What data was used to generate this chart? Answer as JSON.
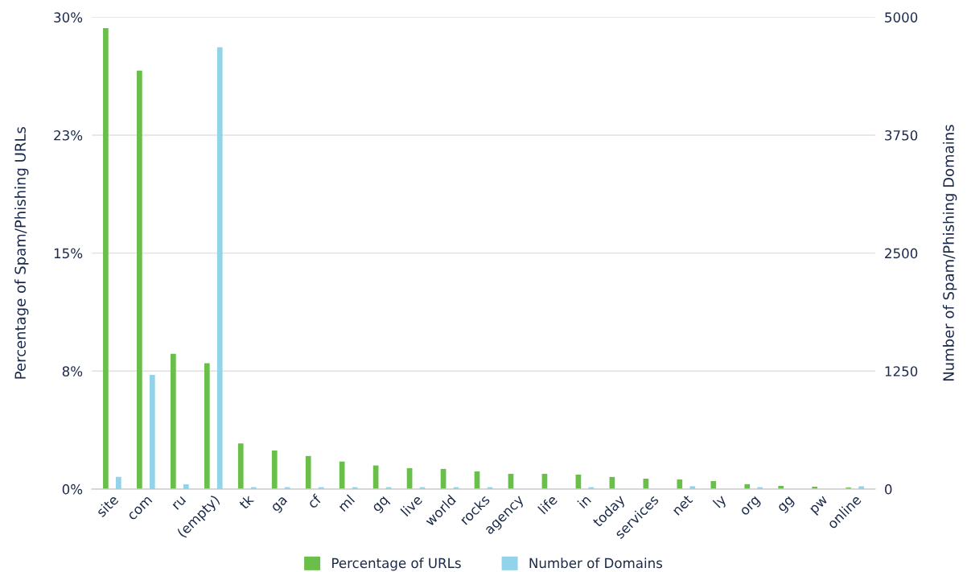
{
  "chart_data": {
    "type": "bar",
    "categories": [
      "site",
      "com",
      "ru",
      "(empty)",
      "tk",
      "ga",
      "cf",
      "ml",
      "gq",
      "live",
      "world",
      "rocks",
      "agency",
      "life",
      "in",
      "today",
      "services",
      "net",
      "ly",
      "org",
      "gg",
      "pw",
      "online"
    ],
    "series": [
      {
        "name": "Percentage of URLs",
        "color": "#6abf4b",
        "values": [
          29.3,
          26.6,
          8.6,
          8.0,
          2.9,
          2.45,
          2.1,
          1.75,
          1.5,
          1.33,
          1.28,
          1.12,
          0.97,
          0.97,
          0.92,
          0.77,
          0.66,
          0.61,
          0.51,
          0.31,
          0.2,
          0.15,
          0.1
        ]
      },
      {
        "name": "Number of Domains",
        "color": "#92d3ea",
        "axis": "y2",
        "values": [
          130,
          1210,
          50,
          4680,
          20,
          20,
          20,
          20,
          20,
          20,
          20,
          20,
          0,
          0,
          20,
          0,
          0,
          30,
          0,
          20,
          0,
          0,
          30
        ]
      }
    ],
    "ylabel": "Percentage of Spam/Phishing URLs",
    "y2label": "Number of Spam/Phishing Domains",
    "ylim": [
      0,
      30
    ],
    "yticks": [
      {
        "value": 0,
        "label": "0%"
      },
      {
        "value": 7.5,
        "label": "8%"
      },
      {
        "value": 15,
        "label": "15%"
      },
      {
        "value": 22.5,
        "label": "23%"
      },
      {
        "value": 30,
        "label": "30%"
      }
    ],
    "y2lim": [
      0,
      5000
    ],
    "y2ticks": [
      0,
      1250,
      2500,
      3750,
      5000
    ],
    "grid": "y",
    "legend": "bottom"
  }
}
